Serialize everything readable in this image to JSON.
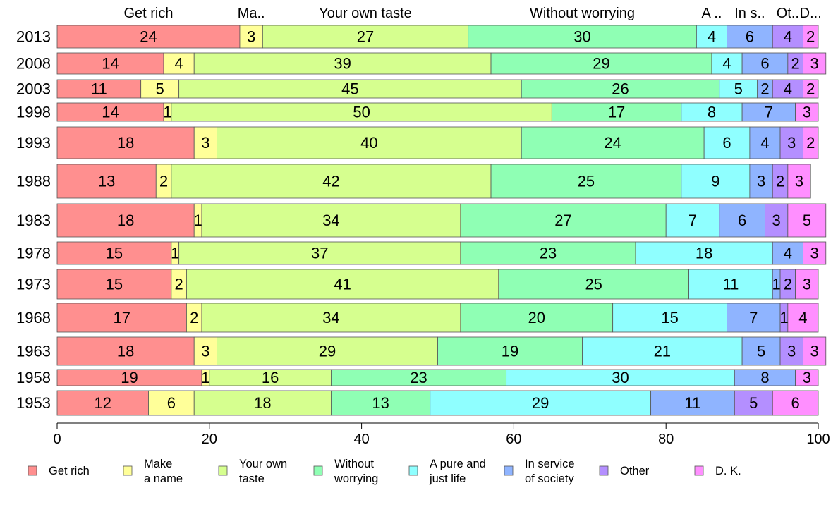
{
  "chart_data": {
    "type": "bar",
    "orientation": "horizontal",
    "stacked": true,
    "title": "",
    "xlabel": "",
    "ylabel": "",
    "xlim": [
      0,
      100
    ],
    "x_ticks": [
      0,
      20,
      40,
      60,
      80,
      100
    ],
    "grid": false,
    "legend_position": "bottom",
    "categories": [
      "2013",
      "2008",
      "2003",
      "1998",
      "1993",
      "1988",
      "1983",
      "1978",
      "1973",
      "1968",
      "1963",
      "1958",
      "1953"
    ],
    "top_labels": [
      "Get rich",
      "Ma..",
      "Your own taste",
      "Without worrying",
      "A ..",
      "In s..",
      "Ot..",
      "D..."
    ],
    "series": [
      {
        "name": "Get rich",
        "color": "#ff8f8f",
        "values": [
          24,
          14,
          11,
          14,
          18,
          13,
          18,
          15,
          15,
          17,
          18,
          19,
          12
        ]
      },
      {
        "name": "Make a name",
        "color": "#ffff99",
        "values": [
          3,
          4,
          5,
          1,
          3,
          2,
          1,
          1,
          2,
          2,
          3,
          1,
          6
        ]
      },
      {
        "name": "Your own taste",
        "color": "#d6ff8f",
        "values": [
          27,
          39,
          45,
          50,
          40,
          42,
          34,
          37,
          41,
          34,
          29,
          16,
          18
        ]
      },
      {
        "name": "Without worrying",
        "color": "#8fffb4",
        "values": [
          30,
          29,
          26,
          17,
          24,
          25,
          27,
          23,
          25,
          20,
          19,
          23,
          13
        ]
      },
      {
        "name": "A pure and just life",
        "color": "#8fffff",
        "values": [
          4,
          4,
          5,
          8,
          6,
          9,
          7,
          18,
          11,
          15,
          21,
          30,
          29
        ]
      },
      {
        "name": "In service of society",
        "color": "#8fb4ff",
        "values": [
          6,
          6,
          2,
          7,
          4,
          3,
          6,
          4,
          1,
          7,
          5,
          8,
          11
        ]
      },
      {
        "name": "Other",
        "color": "#b48fff",
        "values": [
          4,
          2,
          4,
          0,
          3,
          2,
          3,
          0,
          2,
          1,
          3,
          0,
          5
        ]
      },
      {
        "name": "D. K.",
        "color": "#ff8fff",
        "values": [
          2,
          3,
          2,
          3,
          2,
          3,
          5,
          3,
          3,
          4,
          3,
          3,
          6
        ]
      }
    ],
    "legend": [
      {
        "label_lines": [
          "Get rich"
        ],
        "color": "#ff8f8f"
      },
      {
        "label_lines": [
          "Make",
          "a name"
        ],
        "color": "#ffff99"
      },
      {
        "label_lines": [
          "Your own",
          "taste"
        ],
        "color": "#d6ff8f"
      },
      {
        "label_lines": [
          "Without",
          "worrying"
        ],
        "color": "#8fffb4"
      },
      {
        "label_lines": [
          "A pure and",
          "just life"
        ],
        "color": "#8fffff"
      },
      {
        "label_lines": [
          "In service",
          "of society"
        ],
        "color": "#8fb4ff"
      },
      {
        "label_lines": [
          "Other"
        ],
        "color": "#b48fff"
      },
      {
        "label_lines": [
          "D. K."
        ],
        "color": "#ff8fff"
      }
    ]
  }
}
